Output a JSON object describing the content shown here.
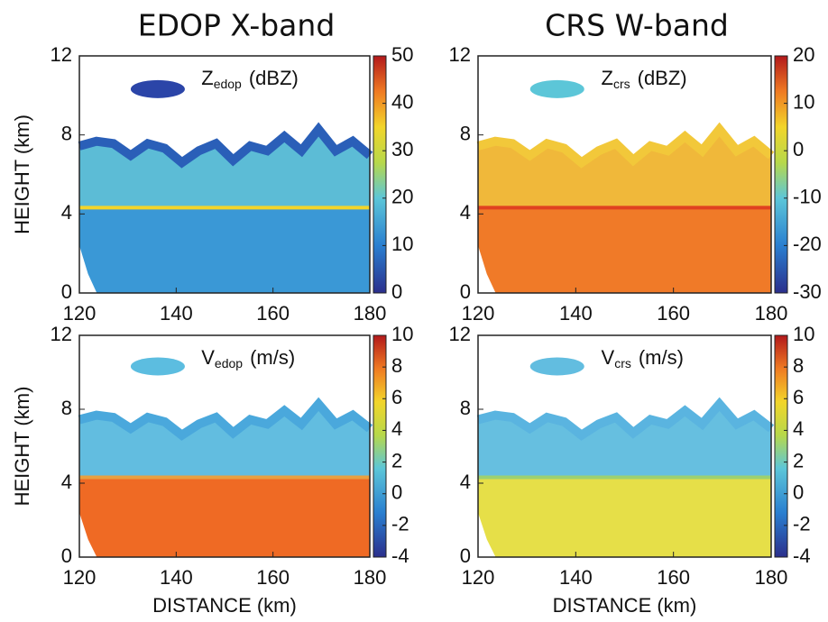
{
  "column_titles": [
    "EDOP X-band",
    "CRS W-band"
  ],
  "chart_data": [
    {
      "type": "heatmap",
      "title": {
        "symbol": "Z",
        "subscript": "edop",
        "unit": "(dBZ)"
      },
      "ylabel": "HEIGHT (km)",
      "xlim": [
        120,
        180
      ],
      "xticks": [
        120,
        140,
        160,
        180
      ],
      "ylim": [
        0,
        12
      ],
      "yticks": [
        0,
        4,
        8,
        12
      ],
      "colorbar": {
        "lim": [
          0,
          50
        ],
        "ticks": [
          0,
          10,
          20,
          30,
          40,
          50
        ]
      }
    },
    {
      "type": "heatmap",
      "title": {
        "symbol": "Z",
        "subscript": "crs",
        "unit": "(dBZ)"
      },
      "xlim": [
        120,
        180
      ],
      "xticks": [
        120,
        140,
        160,
        180
      ],
      "ylim": [
        0,
        12
      ],
      "yticks": [
        0,
        4,
        8,
        12
      ],
      "colorbar": {
        "lim": [
          -30,
          20
        ],
        "ticks": [
          -30,
          -20,
          -10,
          0,
          10,
          20
        ]
      }
    },
    {
      "type": "heatmap",
      "title": {
        "symbol": "V",
        "subscript": "edop",
        "unit": "(m/s)"
      },
      "ylabel": "HEIGHT (km)",
      "xlabel": "DISTANCE (km)",
      "xlim": [
        120,
        180
      ],
      "xticks": [
        120,
        140,
        160,
        180
      ],
      "ylim": [
        0,
        12
      ],
      "yticks": [
        0,
        4,
        8,
        12
      ],
      "colorbar": {
        "lim": [
          -4,
          10
        ],
        "ticks": [
          -4,
          -2,
          0,
          2,
          4,
          6,
          8,
          10
        ]
      }
    },
    {
      "type": "heatmap",
      "title": {
        "symbol": "V",
        "subscript": "crs",
        "unit": "(m/s)"
      },
      "xlabel": "DISTANCE (km)",
      "xlim": [
        120,
        180
      ],
      "xticks": [
        120,
        140,
        160,
        180
      ],
      "ylim": [
        0,
        12
      ],
      "yticks": [
        0,
        4,
        8,
        12
      ],
      "colorbar": {
        "lim": [
          -4,
          10
        ],
        "ticks": [
          -4,
          -2,
          0,
          2,
          4,
          6,
          8,
          10
        ]
      }
    }
  ]
}
